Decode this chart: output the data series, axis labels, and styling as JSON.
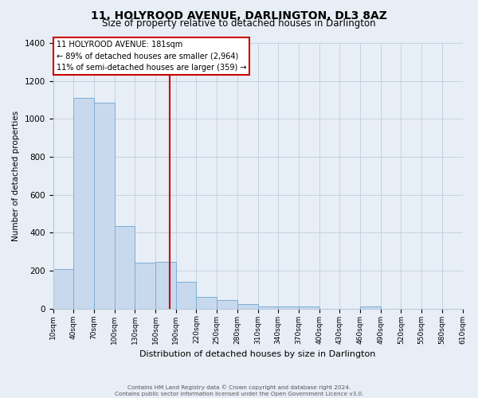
{
  "title": "11, HOLYROOD AVENUE, DARLINGTON, DL3 8AZ",
  "subtitle": "Size of property relative to detached houses in Darlington",
  "xlabel": "Distribution of detached houses by size in Darlington",
  "ylabel": "Number of detached properties",
  "bin_edges": [
    10,
    40,
    70,
    100,
    130,
    160,
    190,
    220,
    250,
    280,
    310,
    340,
    370,
    400,
    430,
    460,
    490,
    520,
    550,
    580,
    610
  ],
  "bar_heights": [
    210,
    1110,
    1085,
    435,
    240,
    245,
    140,
    60,
    45,
    22,
    10,
    10,
    10,
    0,
    0,
    12,
    0,
    0,
    0,
    0
  ],
  "bar_color": "#c9d9ed",
  "bar_edge_color": "#7aaed6",
  "vline_x": 181,
  "vline_color": "#cc0000",
  "annotation_title": "11 HOLYROOD AVENUE: 181sqm",
  "annotation_line1": "← 89% of detached houses are smaller (2,964)",
  "annotation_line2": "11% of semi-detached houses are larger (359) →",
  "annotation_box_color": "#ffffff",
  "annotation_box_edge": "#cc0000",
  "background_color": "#e8eef6",
  "plot_bg_color": "#e8eef6",
  "ylim": [
    0,
    1400
  ],
  "yticks": [
    0,
    200,
    400,
    600,
    800,
    1000,
    1200,
    1400
  ],
  "tick_labels": [
    "10sqm",
    "40sqm",
    "70sqm",
    "100sqm",
    "130sqm",
    "160sqm",
    "190sqm",
    "220sqm",
    "250sqm",
    "280sqm",
    "310sqm",
    "340sqm",
    "370sqm",
    "400sqm",
    "430sqm",
    "460sqm",
    "490sqm",
    "520sqm",
    "550sqm",
    "580sqm",
    "610sqm"
  ],
  "footer1": "Contains HM Land Registry data © Crown copyright and database right 2024.",
  "footer2": "Contains public sector information licensed under the Open Government Licence v3.0."
}
